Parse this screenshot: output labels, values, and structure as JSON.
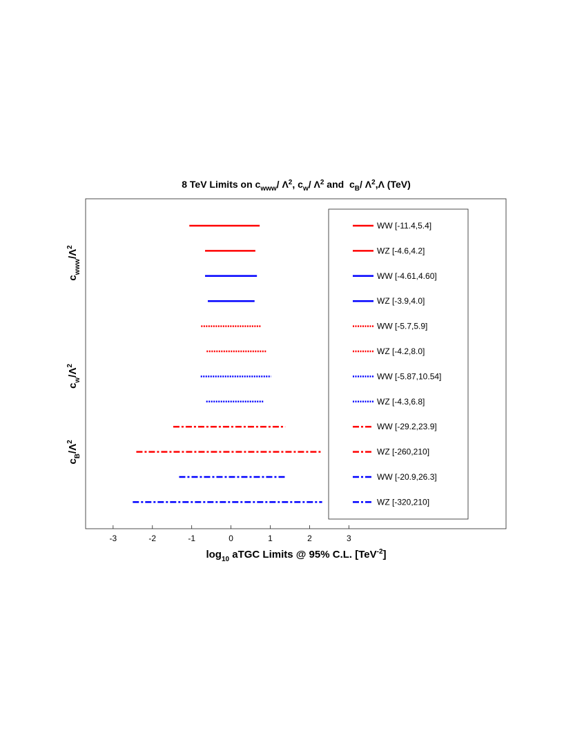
{
  "chart_data": {
    "type": "interval",
    "title": [
      "8 TeV Limits on c",
      "www",
      "/ Λ",
      "2",
      ", c",
      "w",
      "/ Λ",
      "2",
      " and  c",
      "B",
      "/ Λ",
      "2",
      ",Λ (TeV)"
    ],
    "xlabel": [
      "log",
      "10",
      " aTGC Limits @ 95% C.L. [TeV",
      "-2",
      "]"
    ],
    "group_labels": [
      [
        "c",
        "www",
        "/Λ",
        "2"
      ],
      [
        "c",
        "w",
        "/Λ",
        "2"
      ],
      [
        "c",
        "B",
        "/Λ",
        "2"
      ]
    ],
    "xlim": [
      -3.7,
      7.0
    ],
    "xticks": [
      -3,
      -2,
      -1,
      0,
      1,
      2,
      3
    ],
    "series": [
      {
        "name": "WW [-11.4,5.4]",
        "color": "#ff0000",
        "dash": "solid",
        "values": [
          -1.06,
          0.73
        ]
      },
      {
        "name": "WZ [-4.6,4.2]",
        "color": "#ff0000",
        "dash": "solid",
        "values": [
          -0.66,
          0.62
        ]
      },
      {
        "name": "WW [-4.61,4.60]",
        "color": "#0000ff",
        "dash": "solid",
        "values": [
          -0.66,
          0.66
        ]
      },
      {
        "name": "WZ [-3.9,4.0]",
        "color": "#0000ff",
        "dash": "solid",
        "values": [
          -0.59,
          0.6
        ]
      },
      {
        "name": "WW [-5.7,5.9]",
        "color": "#ff0000",
        "dash": "dotted",
        "values": [
          -0.76,
          0.77
        ]
      },
      {
        "name": "WZ [-4.2,8.0]",
        "color": "#ff0000",
        "dash": "dotted",
        "values": [
          -0.62,
          0.9
        ]
      },
      {
        "name": "WW [-5.87,10.54]",
        "color": "#0000ff",
        "dash": "dotted",
        "values": [
          -0.77,
          1.02
        ]
      },
      {
        "name": "WZ [-4.3,6.8]",
        "color": "#0000ff",
        "dash": "dotted",
        "values": [
          -0.63,
          0.83
        ]
      },
      {
        "name": "WW [-29.2,23.9]",
        "color": "#ff0000",
        "dash": "dashdot",
        "values": [
          -1.47,
          1.38
        ]
      },
      {
        "name": "WZ [-260,210]",
        "color": "#ff0000",
        "dash": "dashdot",
        "values": [
          -2.41,
          2.32
        ]
      },
      {
        "name": "WW [-20.9,26.3]",
        "color": "#0000ff",
        "dash": "dashdot",
        "values": [
          -1.32,
          1.42
        ]
      },
      {
        "name": "WZ [-320,210]",
        "color": "#0000ff",
        "dash": "dashdot",
        "values": [
          -2.5,
          2.32
        ]
      }
    ]
  }
}
